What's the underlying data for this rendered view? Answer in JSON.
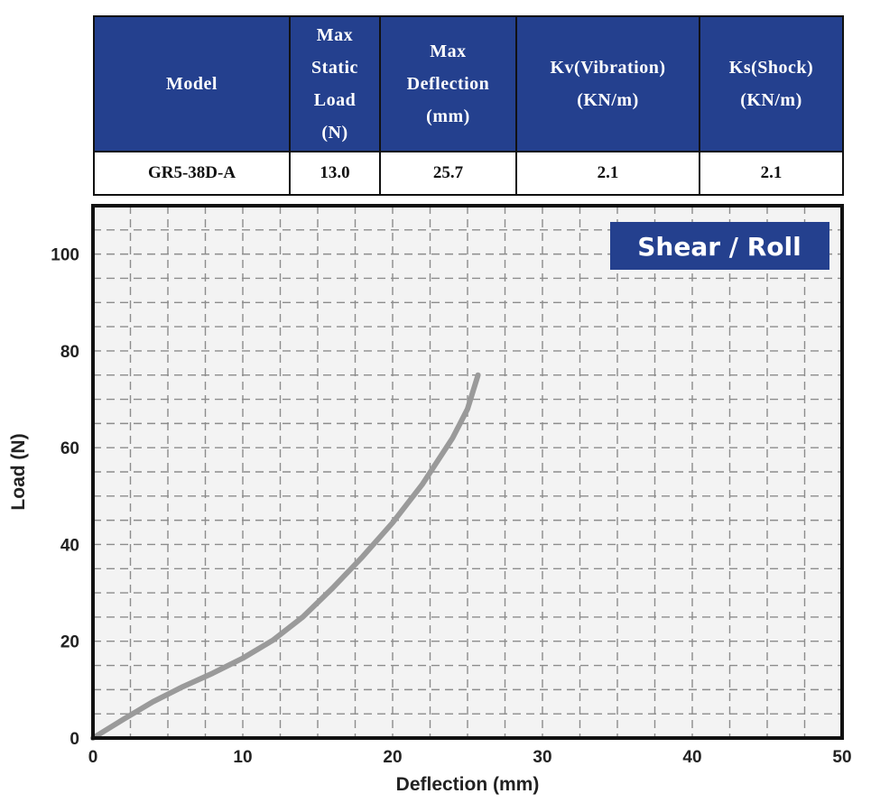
{
  "spec_table": {
    "headers": [
      "Model",
      "Max\nStatic\nLoad\n(N)",
      "Max\nDeflection\n(mm)",
      "Kv(Vibration)\n(KN/m)",
      "Ks(Shock)\n(KN/m)"
    ],
    "row": [
      "GR5-38D-A",
      "13.0",
      "25.7",
      "2.1",
      "2.1"
    ]
  },
  "colors": {
    "table_header": "#24408e",
    "badge": "#24408e",
    "curve": "#9a9a9a",
    "grid": "#8c8c8c",
    "plot_background": "#f3f3f3"
  },
  "chart_data": {
    "type": "line",
    "badge": "Shear / Roll",
    "xlabel": "Deflection (mm)",
    "ylabel": "Load (N)",
    "xlim": [
      0,
      50
    ],
    "ylim": [
      0,
      110
    ],
    "xticks": [
      "0",
      "10",
      "20",
      "30",
      "40",
      "50"
    ],
    "yticks": [
      "0",
      "20",
      "40",
      "60",
      "80",
      "100"
    ],
    "grid": true,
    "series": [
      {
        "x": [
          0,
          2,
          4,
          6,
          8,
          10,
          12,
          14,
          16,
          18,
          20,
          22,
          24,
          25,
          25.7
        ],
        "y": [
          0,
          3.8,
          7.5,
          10.6,
          13.4,
          16.5,
          20.2,
          25,
          31,
          37.5,
          44.5,
          52.5,
          62,
          68,
          75
        ]
      }
    ]
  }
}
